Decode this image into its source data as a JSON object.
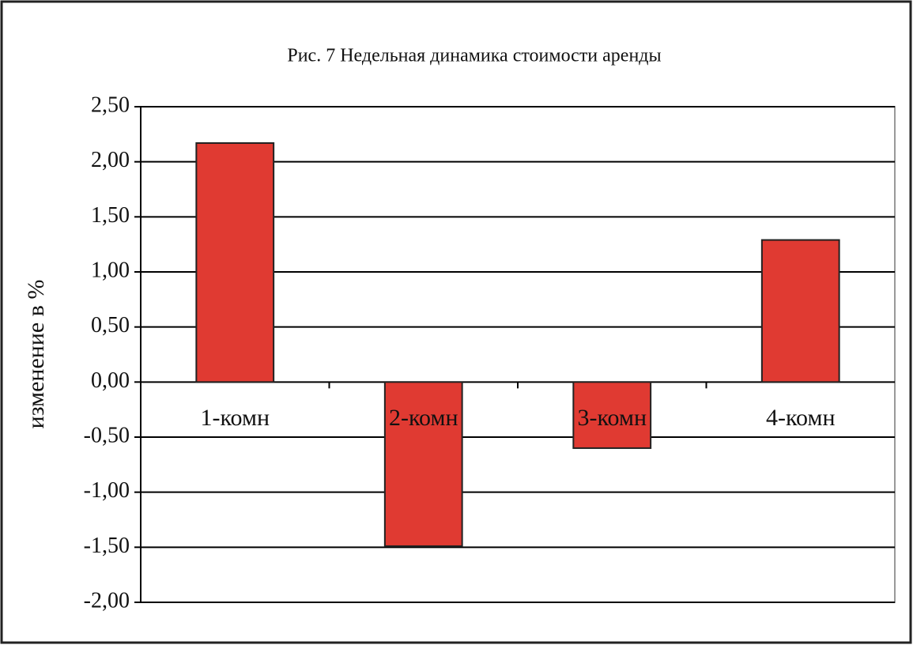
{
  "chart_data": {
    "type": "bar",
    "title": "Рис. 7 Недельная динамика стоимости аренды",
    "y_label": "изменение в %",
    "categories": [
      "1-комн",
      "2-комн",
      "3-комн",
      "4-комн"
    ],
    "values": [
      2.17,
      -1.49,
      -0.6,
      1.29
    ],
    "color": "#e03a32",
    "ylim": [
      -2,
      2.5
    ],
    "yticks": [
      {
        "value": -2,
        "label": "-2,00"
      },
      {
        "value": -1.5,
        "label": "-1,50"
      },
      {
        "value": -1,
        "label": "-1,00"
      },
      {
        "value": -0.5,
        "label": "-0,50"
      },
      {
        "value": 0,
        "label": "0,00"
      },
      {
        "value": 0.5,
        "label": "0,50"
      },
      {
        "value": 1,
        "label": "1,00"
      },
      {
        "value": 1.5,
        "label": "1,50"
      },
      {
        "value": 2,
        "label": "2,00"
      },
      {
        "value": 2.5,
        "label": "2,50"
      }
    ],
    "grid": true
  }
}
